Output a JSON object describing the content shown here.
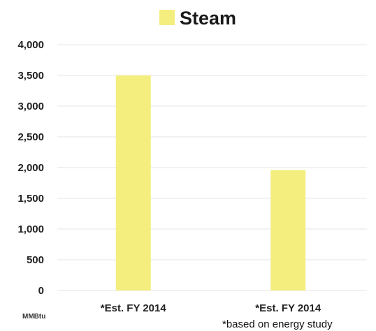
{
  "chart_data": {
    "type": "bar",
    "categories": [
      "*Est. FY 2014",
      "*Est. FY 2014"
    ],
    "series": [
      {
        "name": "Steam",
        "values": [
          3500,
          1960
        ]
      }
    ],
    "ylim": [
      0,
      4000
    ],
    "yticks": [
      0,
      500,
      1000,
      1500,
      2000,
      2500,
      3000,
      3500,
      4000
    ],
    "ytick_labels": [
      "0",
      "500",
      "1,000",
      "1,500",
      "2,000",
      "2,500",
      "3,000",
      "3,500",
      "4,000"
    ],
    "ylabel": "MMBtu",
    "xlabel": "",
    "title": "",
    "grid": true,
    "legend_position": "top-center",
    "footnote": "*based on energy study",
    "colors": {
      "bar": "#f4ee7f",
      "grid": "#e6e6e6"
    }
  }
}
